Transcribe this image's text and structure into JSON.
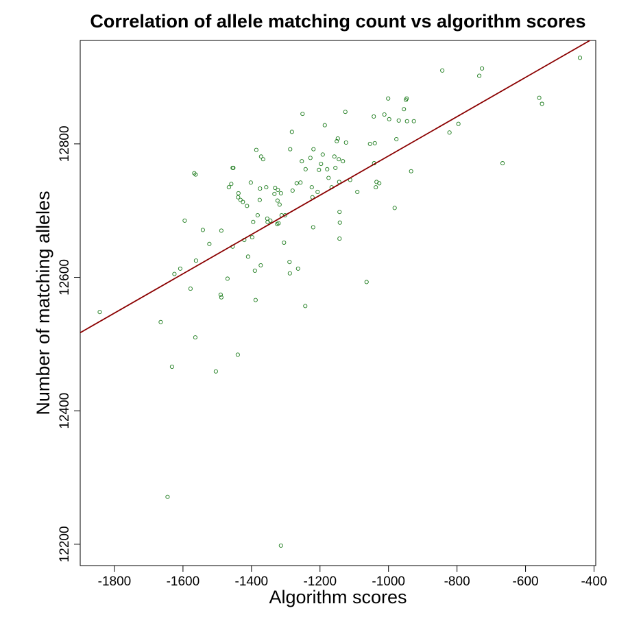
{
  "chart_data": {
    "type": "scatter",
    "title": "Correlation of allele matching count vs algorithm scores",
    "xlabel": "Algorithm scores",
    "ylabel": "Number of matching alleles",
    "xlim": [
      -1900,
      -395
    ],
    "ylim": [
      12168,
      12955
    ],
    "xticks": [
      -1800,
      -1600,
      -1400,
      -1200,
      -1000,
      -800,
      -600,
      -400
    ],
    "yticks": [
      12200,
      12400,
      12600,
      12800
    ],
    "grid": false,
    "legend": "none",
    "colors": {
      "points": "#1a7a1a",
      "fit_line": "#8b0000",
      "axes": "#000000"
    },
    "fit_line": {
      "x": [
        -1900,
        -395
      ],
      "y": [
        12517,
        12960
      ]
    },
    "series": [
      {
        "points": [
          [
            -1843,
            12548
          ],
          [
            -1665,
            12533
          ],
          [
            -1645,
            12271
          ],
          [
            -1632,
            12466
          ],
          [
            -1625,
            12605
          ],
          [
            -1608,
            12613
          ],
          [
            -1595,
            12685
          ],
          [
            -1578,
            12583
          ],
          [
            -1567,
            12756
          ],
          [
            -1563,
            12754
          ],
          [
            -1562,
            12625
          ],
          [
            -1564,
            12510
          ],
          [
            -1542,
            12671
          ],
          [
            -1523,
            12650
          ],
          [
            -1504,
            12459
          ],
          [
            -1490,
            12574
          ],
          [
            -1488,
            12570
          ],
          [
            -1488,
            12670
          ],
          [
            -1470,
            12598
          ],
          [
            -1466,
            12735
          ],
          [
            -1459,
            12740
          ],
          [
            -1455,
            12646
          ],
          [
            -1455,
            12764
          ],
          [
            -1453,
            12764
          ],
          [
            -1439,
            12720
          ],
          [
            -1438,
            12726
          ],
          [
            -1432,
            12716
          ],
          [
            -1440,
            12484
          ],
          [
            -1425,
            12713
          ],
          [
            -1421,
            12656
          ],
          [
            -1413,
            12707
          ],
          [
            -1410,
            12631
          ],
          [
            -1402,
            12742
          ],
          [
            -1398,
            12660
          ],
          [
            -1395,
            12683
          ],
          [
            -1390,
            12610
          ],
          [
            -1388,
            12566
          ],
          [
            -1386,
            12791
          ],
          [
            -1382,
            12693
          ],
          [
            -1375,
            12733
          ],
          [
            -1376,
            12716
          ],
          [
            -1372,
            12781
          ],
          [
            -1373,
            12618
          ],
          [
            -1366,
            12777
          ],
          [
            -1357,
            12735
          ],
          [
            -1354,
            12688
          ],
          [
            -1353,
            12683
          ],
          [
            -1345,
            12685
          ],
          [
            -1333,
            12725
          ],
          [
            -1331,
            12734
          ],
          [
            -1325,
            12680
          ],
          [
            -1323,
            12731
          ],
          [
            -1324,
            12715
          ],
          [
            -1321,
            12681
          ],
          [
            -1318,
            12709
          ],
          [
            -1314,
            12726
          ],
          [
            -1312,
            12693
          ],
          [
            -1305,
            12652
          ],
          [
            -1302,
            12693
          ],
          [
            -1314,
            12198
          ],
          [
            -1289,
            12623
          ],
          [
            -1288,
            12606
          ],
          [
            -1287,
            12792
          ],
          [
            -1282,
            12818
          ],
          [
            -1280,
            12730
          ],
          [
            -1268,
            12741
          ],
          [
            -1264,
            12613
          ],
          [
            -1257,
            12742
          ],
          [
            -1253,
            12774
          ],
          [
            -1251,
            12845
          ],
          [
            -1243,
            12557
          ],
          [
            -1242,
            12762
          ],
          [
            -1228,
            12779
          ],
          [
            -1224,
            12735
          ],
          [
            -1222,
            12720
          ],
          [
            -1219,
            12792
          ],
          [
            -1220,
            12675
          ],
          [
            -1207,
            12728
          ],
          [
            -1203,
            12761
          ],
          [
            -1197,
            12770
          ],
          [
            -1192,
            12784
          ],
          [
            -1186,
            12828
          ],
          [
            -1179,
            12762
          ],
          [
            -1175,
            12749
          ],
          [
            -1166,
            12735
          ],
          [
            -1158,
            12781
          ],
          [
            -1155,
            12764
          ],
          [
            -1151,
            12804
          ],
          [
            -1148,
            12808
          ],
          [
            -1145,
            12777
          ],
          [
            -1144,
            12743
          ],
          [
            -1143,
            12698
          ],
          [
            -1142,
            12682
          ],
          [
            -1143,
            12658
          ],
          [
            -1133,
            12774
          ],
          [
            -1126,
            12848
          ],
          [
            -1124,
            12802
          ],
          [
            -1112,
            12746
          ],
          [
            -1091,
            12728
          ],
          [
            -1064,
            12593
          ],
          [
            -1054,
            12800
          ],
          [
            -1042,
            12771
          ],
          [
            -1043,
            12841
          ],
          [
            -1040,
            12801
          ],
          [
            -1037,
            12735
          ],
          [
            -1035,
            12743
          ],
          [
            -1027,
            12741
          ],
          [
            -1012,
            12844
          ],
          [
            -1001,
            12868
          ],
          [
            -998,
            12837
          ],
          [
            -982,
            12704
          ],
          [
            -977,
            12807
          ],
          [
            -970,
            12835
          ],
          [
            -955,
            12852
          ],
          [
            -949,
            12866
          ],
          [
            -947,
            12868
          ],
          [
            -946,
            12834
          ],
          [
            -934,
            12759
          ],
          [
            -926,
            12834
          ],
          [
            -843,
            12910
          ],
          [
            -822,
            12817
          ],
          [
            -796,
            12830
          ],
          [
            -735,
            12902
          ],
          [
            -727,
            12913
          ],
          [
            -667,
            12771
          ],
          [
            -560,
            12869
          ],
          [
            -552,
            12860
          ],
          [
            -441,
            12929
          ]
        ]
      }
    ]
  }
}
